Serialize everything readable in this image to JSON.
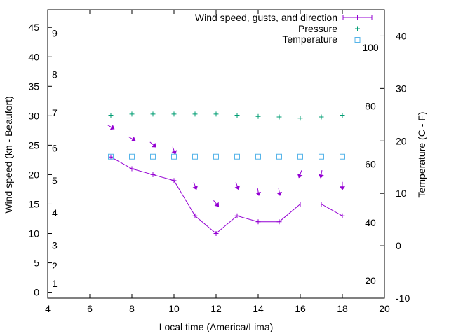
{
  "chart_data": {
    "type": "line",
    "xlabel": "Local time (America/Lima)",
    "ylabel": "Wind speed (kn - Beaufort)",
    "y2label": "Temperature (C - F)",
    "xlim": [
      4,
      20
    ],
    "ylim": [
      -1,
      48
    ],
    "y2lim": [
      -10,
      45
    ],
    "x_ticks": [
      "4",
      "6",
      "8",
      "10",
      "12",
      "14",
      "16",
      "18",
      "20"
    ],
    "y_ticks": [
      "0",
      "5",
      "10",
      "15",
      "20",
      "25",
      "30",
      "35",
      "40",
      "45"
    ],
    "y2_ticks": [
      "-10",
      "0",
      "10",
      "20",
      "30",
      "40"
    ],
    "beaufort_labels": [
      "1",
      "2",
      "3",
      "4",
      "5",
      "6",
      "7",
      "8",
      "9"
    ],
    "fahrenheit_labels": [
      "20",
      "40",
      "60",
      "80",
      "100"
    ],
    "legend": {
      "wind": "Wind speed, gusts, and direction",
      "pressure": "Pressure",
      "temperature": "Temperature"
    },
    "colors": {
      "wind": "#9400d3",
      "pressure": "#009e73",
      "temperature": "#56b4e9"
    },
    "series": [
      {
        "name": "Wind speed, gusts, and direction",
        "x": [
          7,
          8,
          9,
          10,
          11,
          12,
          13,
          14,
          15,
          16,
          17,
          18
        ],
        "values": [
          23,
          21,
          20,
          19,
          13,
          10,
          13,
          12,
          12,
          15,
          15,
          13
        ],
        "direction_deg": [
          300,
          300,
          310,
          340,
          340,
          320,
          340,
          350,
          350,
          20,
          10,
          0
        ]
      },
      {
        "name": "Pressure",
        "x": [
          7,
          8,
          9,
          10,
          11,
          12,
          13,
          14,
          15,
          16,
          17,
          18
        ],
        "values": [
          30.1,
          30.3,
          30.3,
          30.3,
          30.3,
          30.3,
          30.1,
          29.9,
          29.8,
          29.6,
          29.8,
          30.1
        ]
      },
      {
        "name": "Temperature",
        "x": [
          7,
          8,
          9,
          10,
          11,
          12,
          13,
          14,
          15,
          16,
          17,
          18
        ],
        "values": [
          17,
          17,
          17,
          17,
          17,
          17,
          17,
          17,
          17,
          17,
          17,
          17
        ]
      }
    ]
  }
}
